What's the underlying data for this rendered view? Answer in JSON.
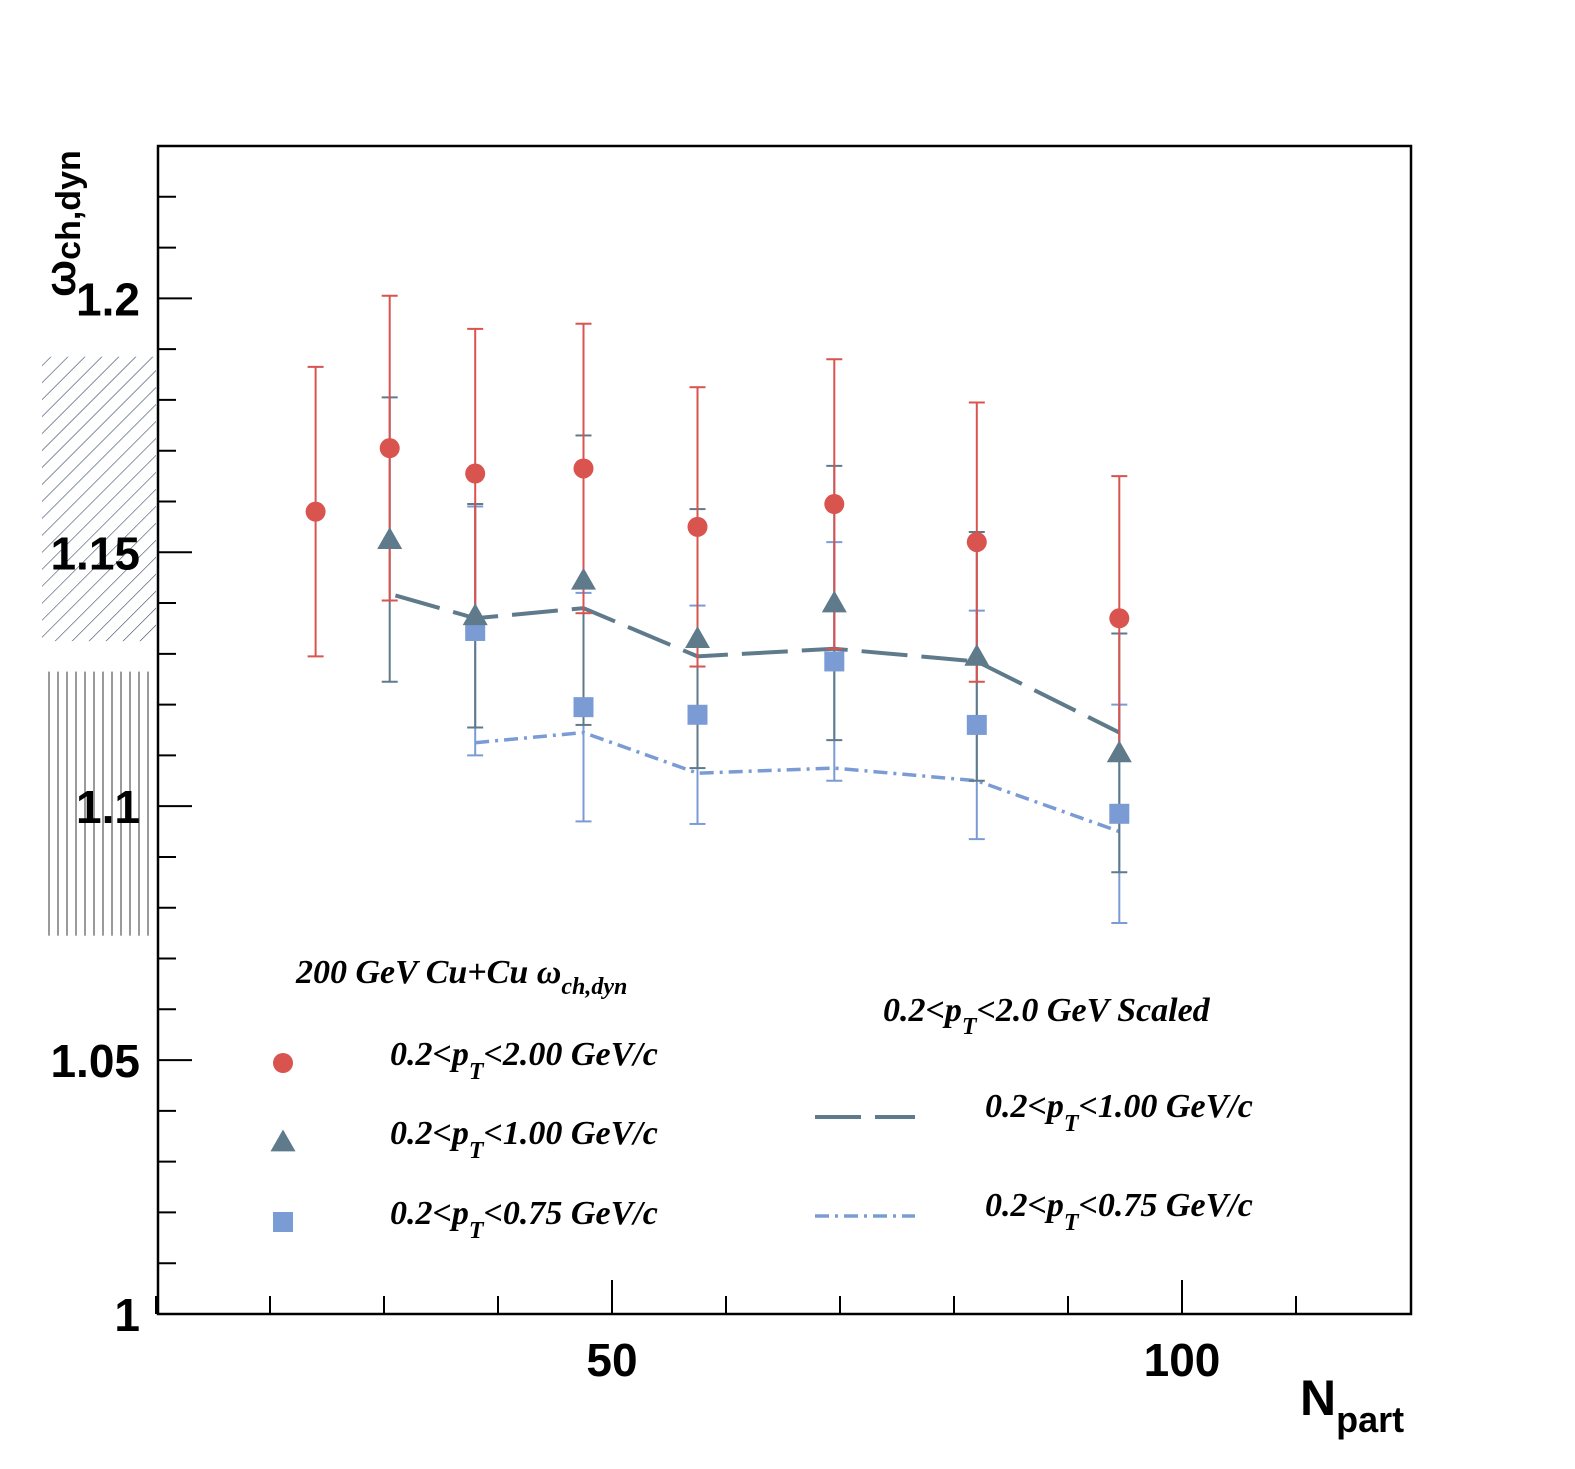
{
  "chart_data": {
    "type": "scatter",
    "title": "",
    "xlabel": {
      "main": "N",
      "sub": "part"
    },
    "ylabel": {
      "main": "ω",
      "sub": "ch,dyn"
    },
    "xlim": [
      0,
      110
    ],
    "ylim": [
      1.0,
      1.23
    ],
    "x_ticks": [
      50,
      100
    ],
    "y_ticks": [
      1,
      1.05,
      1.1,
      1.15,
      1.2
    ],
    "y_tick_labels": [
      "1",
      "1.05",
      "1.1",
      "1.15",
      "1.2"
    ],
    "x_tick_labels": [
      "50",
      "100"
    ],
    "legend_title": {
      "main": "200 GeV Cu+Cu ω",
      "sub": "ch,dyn"
    },
    "legend_right_title": {
      "pre": "0.2<p",
      "sub": "T",
      "post": "<2.0 GeV Scaled"
    },
    "series": [
      {
        "name_pre": "0.2<p",
        "name_sub": "T",
        "name_post": "<2.00 GeV/c",
        "marker": "circle",
        "color": "#d9534f",
        "x": [
          24,
          30.5,
          38,
          47.5,
          57.5,
          69.5,
          82,
          94.5
        ],
        "y": [
          1.158,
          1.1705,
          1.1655,
          1.1665,
          1.155,
          1.1595,
          1.152,
          1.137
        ],
        "err": [
          0.0285,
          0.03,
          0.0285,
          0.0285,
          0.0275,
          0.0285,
          0.0275,
          0.028
        ]
      },
      {
        "name_pre": "0.2<p",
        "name_sub": "T",
        "name_post": "<1.00 GeV/c",
        "marker": "triangle",
        "color": "#5f7a8a",
        "x": [
          30.5,
          38,
          47.5,
          57.5,
          69.5,
          82,
          94.5
        ],
        "y": [
          1.1525,
          1.1375,
          1.1445,
          1.133,
          1.14,
          1.1295,
          1.1105
        ],
        "err": [
          0.028,
          0.022,
          0.0285,
          0.0255,
          0.027,
          0.0245,
          0.0235
        ]
      },
      {
        "name_pre": "0.2<p",
        "name_sub": "T",
        "name_post": "<0.75 GeV/c",
        "marker": "square",
        "color": "#7b9bd4",
        "x": [
          38,
          47.5,
          57.5,
          69.5,
          82,
          94.5
        ],
        "y": [
          1.1345,
          1.1195,
          1.118,
          1.1285,
          1.116,
          1.0985
        ],
        "err": [
          0.0245,
          0.0225,
          0.0215,
          0.0235,
          0.0225,
          0.0215
        ]
      }
    ],
    "lines": [
      {
        "name_pre": "0.2<p",
        "name_sub": "T",
        "name_post": "<1.00 GeV/c",
        "style": "dashed",
        "color": "#5f7a8a",
        "x": [
          31,
          38,
          47.5,
          57.5,
          69.5,
          82,
          94.5
        ],
        "y": [
          1.1415,
          1.137,
          1.139,
          1.1295,
          1.131,
          1.1285,
          1.1145
        ]
      },
      {
        "name_pre": "0.2<p",
        "name_sub": "T",
        "name_post": "<0.75 GeV/c",
        "style": "dashdot",
        "color": "#7b9bd4",
        "x": [
          38,
          47.5,
          57.5,
          69.5,
          82,
          94.5
        ],
        "y": [
          1.1125,
          1.1145,
          1.1065,
          1.1075,
          1.105,
          1.095
        ]
      }
    ],
    "systematic_bands": [
      {
        "pattern": "diagonal",
        "color": "#3a4a66",
        "x": [
          0,
          10
        ],
        "y": [
          1.1325,
          1.1885
        ]
      },
      {
        "pattern": "vertical",
        "color": "#555555",
        "x": [
          0,
          10
        ],
        "y": [
          1.0745,
          1.1265
        ]
      }
    ],
    "grid": false,
    "legend_position": "bottom"
  }
}
